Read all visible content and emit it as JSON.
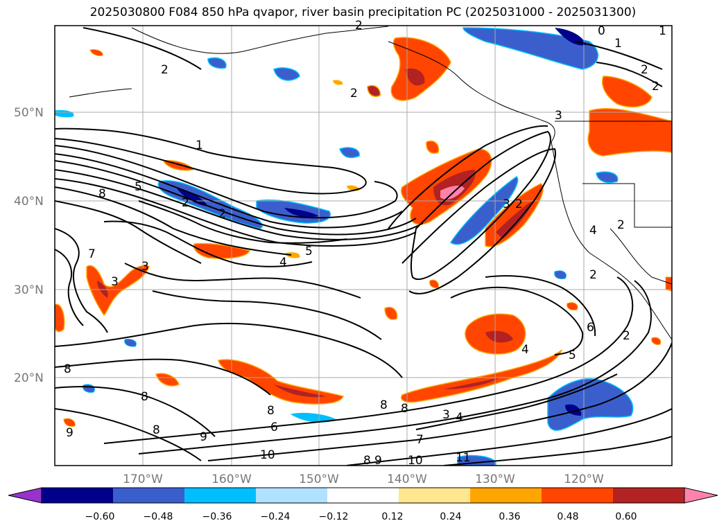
{
  "title": "2025030800 F084 850 hPa qvapor, river basin precipitation PC (2025031000 - 2025031300)",
  "map": {
    "lat_labels": [
      "50°N",
      "40°N",
      "30°N",
      "20°N"
    ],
    "lon_labels": [
      "170°W",
      "160°W",
      "150°W",
      "140°W",
      "130°W",
      "120°W"
    ],
    "contour_labels": [
      "2",
      "2",
      "2",
      "1",
      "2",
      "0",
      "1",
      "2",
      "2",
      "3",
      "1",
      "8",
      "5",
      "2",
      "5",
      "4",
      "7",
      "3",
      "3",
      "3",
      "2",
      "4",
      "2",
      "6",
      "5",
      "4",
      "2",
      "8",
      "8",
      "8",
      "8",
      "6",
      "8",
      "9",
      "8",
      "3",
      "4",
      "7",
      "10",
      "10",
      "11",
      "9",
      "8",
      "9",
      "2"
    ]
  },
  "colorbar": {
    "ticks": [
      "−0.60",
      "−0.48",
      "−0.36",
      "−0.24",
      "−0.12",
      "0.12",
      "0.24",
      "0.36",
      "0.48",
      "0.60"
    ],
    "colors": [
      "#9932cc",
      "#00008b",
      "#3a5fcd",
      "#00bfff",
      "#b0e2ff",
      "#ffffff",
      "#ffe78f",
      "#ffa500",
      "#ff4500",
      "#b22222",
      "#ff82ab"
    ]
  }
}
